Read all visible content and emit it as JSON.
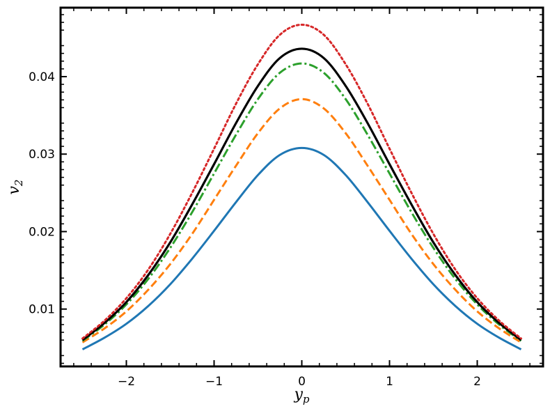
{
  "chart_data": {
    "type": "line",
    "title": "",
    "xlabel": {
      "main": "y",
      "sub": "p"
    },
    "ylabel": {
      "main": "v",
      "sub": "2"
    },
    "xlim": [
      -2.75,
      2.75
    ],
    "ylim": [
      0.0026,
      0.0489
    ],
    "grid": false,
    "legend": "none",
    "x_ticks": [
      -2,
      -1,
      0,
      1,
      2
    ],
    "x_tick_labels": [
      "−2",
      "−1",
      "0",
      "1",
      "2"
    ],
    "y_ticks": [
      0.01,
      0.02,
      0.03,
      0.04
    ],
    "y_tick_labels": [
      "0.01",
      "0.02",
      "0.03",
      "0.04"
    ],
    "x": [
      -2.5,
      -2.25,
      -2.0,
      -1.75,
      -1.5,
      -1.25,
      -1.0,
      -0.75,
      -0.5,
      -0.25,
      0.0,
      0.25,
      0.5,
      0.75,
      1.0,
      1.25,
      1.5,
      1.75,
      2.0,
      2.25,
      2.5
    ],
    "series": [
      {
        "color": "#1f77b4",
        "style": "solid",
        "values": [
          0.0048,
          0.0063,
          0.0081,
          0.0104,
          0.0132,
          0.0165,
          0.0201,
          0.0238,
          0.0273,
          0.0299,
          0.0308,
          0.0299,
          0.0273,
          0.0238,
          0.0201,
          0.0165,
          0.0132,
          0.0104,
          0.0081,
          0.0063,
          0.0048
        ]
      },
      {
        "color": "#ff7f0e",
        "style": "dashed",
        "values": [
          0.0057,
          0.0075,
          0.0097,
          0.0125,
          0.0158,
          0.0197,
          0.0241,
          0.0285,
          0.0327,
          0.0359,
          0.0371,
          0.0359,
          0.0327,
          0.0285,
          0.0241,
          0.0197,
          0.0158,
          0.0125,
          0.0097,
          0.0075,
          0.0057
        ]
      },
      {
        "color": "#2ca02c",
        "style": "dashdot",
        "values": [
          0.0059,
          0.008,
          0.0106,
          0.0139,
          0.0179,
          0.0225,
          0.0275,
          0.0325,
          0.0371,
          0.0405,
          0.0417,
          0.0405,
          0.0371,
          0.0325,
          0.0275,
          0.0225,
          0.0179,
          0.0139,
          0.0106,
          0.008,
          0.0059
        ]
      },
      {
        "color": "#000000",
        "style": "solid",
        "values": [
          0.006,
          0.0082,
          0.0109,
          0.0144,
          0.0186,
          0.0235,
          0.0287,
          0.034,
          0.0388,
          0.0424,
          0.0436,
          0.0424,
          0.0388,
          0.034,
          0.0287,
          0.0235,
          0.0186,
          0.0144,
          0.0109,
          0.0082,
          0.006
        ]
      },
      {
        "color": "#d62728",
        "style": "dotted",
        "values": [
          0.0062,
          0.0085,
          0.0114,
          0.0151,
          0.0197,
          0.025,
          0.0307,
          0.0365,
          0.0416,
          0.0454,
          0.0467,
          0.0454,
          0.0416,
          0.0365,
          0.0307,
          0.025,
          0.0197,
          0.0151,
          0.0114,
          0.0085,
          0.0062
        ]
      }
    ]
  }
}
